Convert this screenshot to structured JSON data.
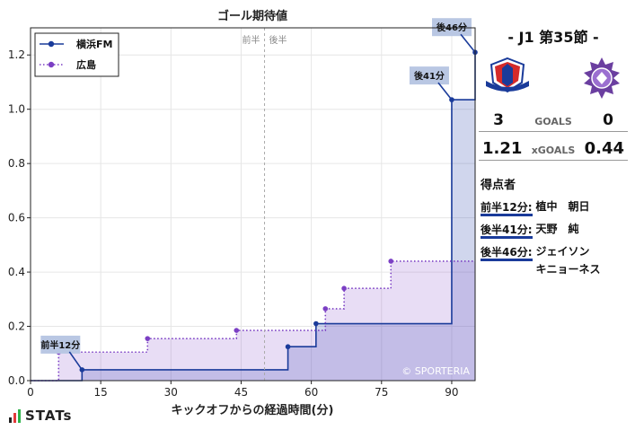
{
  "chart_data": {
    "type": "line",
    "step": true,
    "title": "ゴール期待値",
    "xlabel": "キックオフからの経過時間(分)",
    "ylabel": "",
    "xlim": [
      0,
      95
    ],
    "ylim": [
      0,
      1.3
    ],
    "xticks": [
      0,
      15,
      30,
      45,
      60,
      75,
      90
    ],
    "yticks": [
      0,
      0.2,
      0.4,
      0.6,
      0.8,
      1.0,
      1.2
    ],
    "ytick_labels": [
      "0.0",
      "0.2",
      "0.4",
      "0.6",
      "0.8",
      "1.0",
      "1.2"
    ],
    "grid": true,
    "legend_position": "top-left",
    "halftime_minute": 50,
    "half_labels": [
      "前半",
      "後半"
    ],
    "series": [
      {
        "name": "横浜FM",
        "color": "#1a3b9a",
        "fill": "rgba(40,70,175,0.22)",
        "line_style": "solid",
        "points": [
          [
            0,
            0
          ],
          [
            11,
            0.04
          ],
          [
            55,
            0.125
          ],
          [
            61,
            0.21
          ],
          [
            90,
            1.035
          ],
          [
            95,
            1.21
          ],
          [
            107,
            1.21
          ]
        ]
      },
      {
        "name": "広島",
        "color": "#7b3fc4",
        "fill": "rgba(150,100,210,0.22)",
        "line_style": "dotted",
        "points": [
          [
            0,
            0
          ],
          [
            6,
            0.105
          ],
          [
            25,
            0.155
          ],
          [
            44,
            0.185
          ],
          [
            63,
            0.265
          ],
          [
            67,
            0.34
          ],
          [
            77,
            0.44
          ],
          [
            107,
            0.44
          ]
        ]
      }
    ],
    "annotations": [
      {
        "label": "前半12分",
        "x": 11,
        "y": 0.04
      },
      {
        "label": "後41分",
        "x": 90,
        "y": 1.035
      },
      {
        "label": "後46分",
        "x": 95,
        "y": 1.21
      }
    ],
    "credit": "© SPORTERIA"
  },
  "panel": {
    "match_title": "-  J1 第35節  -",
    "home_goals": "3",
    "goals_label": "GOALS",
    "away_goals": "0",
    "home_xg": "1.21",
    "xg_label": "xGOALS",
    "away_xg": "0.44",
    "scorers_title": "得点者",
    "scorers": [
      {
        "time": "前半12分:",
        "name": "植中　朝日"
      },
      {
        "time": "後半41分:",
        "name": "天野　純"
      },
      {
        "time": "後半46分:",
        "name": "ジェイソン\nキニョーネス"
      }
    ],
    "home_crest_color": "#1a3b9a",
    "away_crest_color": "#6b3fa0"
  },
  "brand": {
    "name": "STATs",
    "bar_colors": [
      "#222222",
      "#e23a3a",
      "#2db34a"
    ]
  }
}
